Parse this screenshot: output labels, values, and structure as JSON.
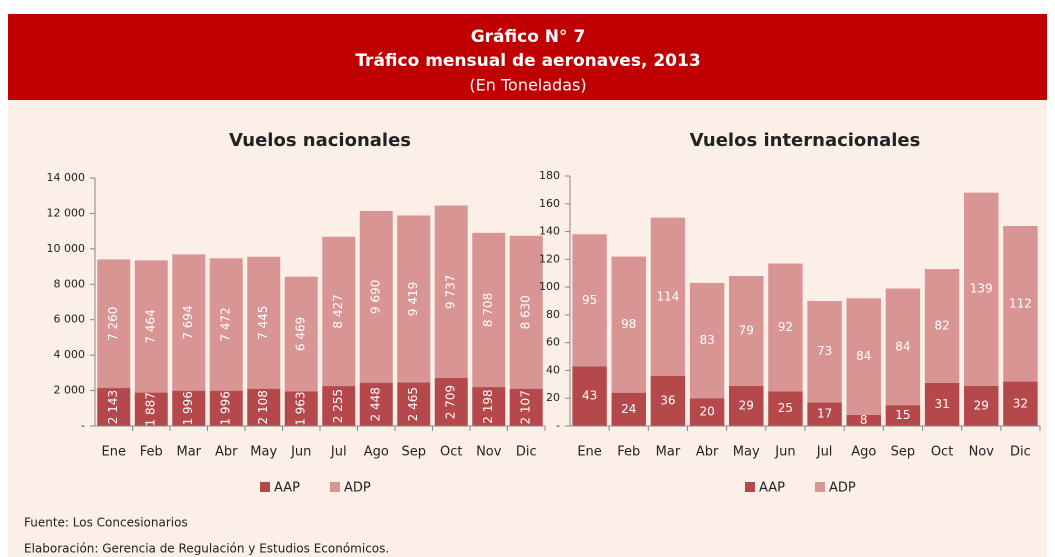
{
  "header": {
    "title": "Gráfico N° 7",
    "subtitle": "Tráfico mensual de aeronaves, 2013",
    "unit": "(En Toneladas)"
  },
  "footer": {
    "source": "Fuente: Los Concesionarios",
    "credit": "Elaboración: Gerencia de Regulación y Estudios Económicos."
  },
  "chart_data": [
    {
      "type": "stacked_bar",
      "title": "Vuelos nacionales",
      "categories": [
        "Ene",
        "Feb",
        "Mar",
        "Abr",
        "May",
        "Jun",
        "Jul",
        "Ago",
        "Sep",
        "Oct",
        "Nov",
        "Dic"
      ],
      "series": [
        {
          "name": "AAP",
          "color": "#b5484a",
          "values": [
            2143,
            1887,
            1996,
            1996,
            2108,
            1963,
            2255,
            2448,
            2465,
            2709,
            2198,
            2107
          ],
          "value_labels": [
            "2 143",
            "1 887",
            "1 996",
            "1 996",
            "2 108",
            "1 963",
            "2 255",
            "2 448",
            "2 465",
            "2 709",
            "2 198",
            "2 107"
          ]
        },
        {
          "name": "ADP",
          "color": "#d99594",
          "values": [
            7260,
            7464,
            7694,
            7472,
            7445,
            6469,
            8427,
            9690,
            9419,
            9737,
            8708,
            8630
          ],
          "value_labels": [
            "7 260",
            "7 464",
            "7 694",
            "7 472",
            "7 445",
            "6 469",
            "8 427",
            "9 690",
            "9 419",
            "9 737",
            "8 708",
            "8 630"
          ]
        }
      ],
      "ylim": [
        0,
        14000
      ],
      "yticks": [
        {
          "value": 0,
          "label": "-"
        },
        {
          "value": 2000,
          "label": "2 000"
        },
        {
          "value": 4000,
          "label": "4 000"
        },
        {
          "value": 6000,
          "label": "6 000"
        },
        {
          "value": 8000,
          "label": "8 000"
        },
        {
          "value": 10000,
          "label": "10 000"
        },
        {
          "value": 12000,
          "label": "12 000"
        },
        {
          "value": 14000,
          "label": "14 000"
        }
      ],
      "legend": "bottom"
    },
    {
      "type": "stacked_bar",
      "title": "Vuelos internacionales",
      "categories": [
        "Ene",
        "Feb",
        "Mar",
        "Abr",
        "May",
        "Jun",
        "Jul",
        "Ago",
        "Sep",
        "Oct",
        "Nov",
        "Dic"
      ],
      "series": [
        {
          "name": "AAP",
          "color": "#b5484a",
          "values": [
            43,
            24,
            36,
            20,
            29,
            25,
            17,
            8,
            15,
            31,
            29,
            32
          ]
        },
        {
          "name": "ADP",
          "color": "#d99594",
          "values": [
            95,
            98,
            114,
            83,
            79,
            92,
            73,
            84,
            84,
            82,
            139,
            112
          ]
        }
      ],
      "ylim": [
        0,
        180
      ],
      "yticks": [
        {
          "value": 0,
          "label": "-"
        },
        20,
        40,
        60,
        80,
        100,
        120,
        140,
        160,
        180
      ],
      "legend": "bottom"
    }
  ]
}
